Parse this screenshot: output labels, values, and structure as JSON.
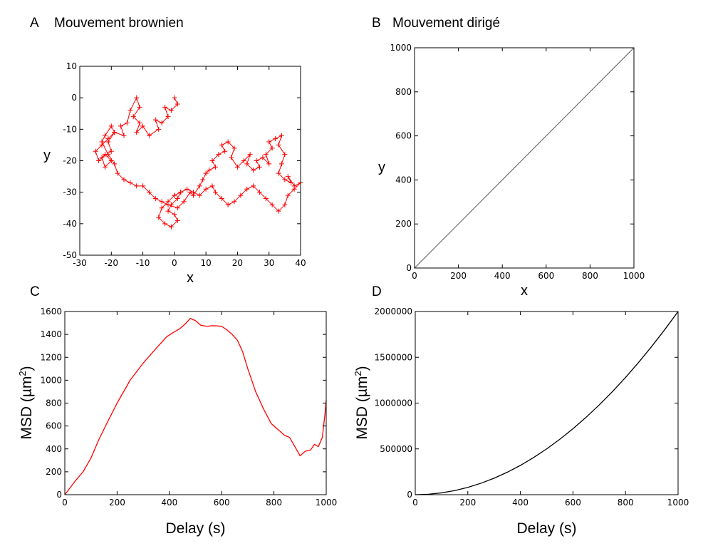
{
  "panels": {
    "A": {
      "letter": "A",
      "title": "Mouvement brownien"
    },
    "B": {
      "letter": "B",
      "title": "Mouvement dirigé"
    },
    "C": {
      "letter": "C",
      "title": ""
    },
    "D": {
      "letter": "D",
      "title": ""
    }
  },
  "colors": {
    "brownian": "#ff0000",
    "directed": "#555555",
    "msd_c": "#ff0000",
    "msd_d": "#000000"
  },
  "chart_data": [
    {
      "id": "A",
      "type": "line",
      "marker": "+",
      "title": "Mouvement brownien",
      "xlabel": "x",
      "ylabel": "y",
      "xlim": [
        -30,
        40
      ],
      "ylim": [
        -50,
        10
      ],
      "xticks": [
        -30,
        -20,
        -10,
        0,
        10,
        20,
        30,
        40
      ],
      "yticks": [
        -50,
        -40,
        -30,
        -20,
        -10,
        0,
        10
      ],
      "grid": false,
      "series": [
        {
          "x": [
            0,
            1,
            -1,
            -3,
            -2,
            -4,
            -6,
            -5,
            -8,
            -10,
            -12,
            -11,
            -13,
            -11,
            -12,
            -14,
            -15,
            -17,
            -16,
            -19,
            -21,
            -20,
            -23,
            -22,
            -20,
            -22,
            -24,
            -25,
            -23,
            -21,
            -19,
            -20,
            -22,
            -23,
            -21,
            -19,
            -18,
            -16,
            -14,
            -12,
            -10,
            -8,
            -6,
            -4,
            -2,
            1,
            3,
            5,
            6,
            8,
            9,
            10,
            11,
            13,
            12,
            14,
            16,
            15,
            17,
            19,
            18,
            20,
            22,
            24,
            23,
            25,
            27,
            26,
            28,
            30,
            29,
            31,
            30,
            32,
            34,
            33,
            35,
            34,
            33,
            35,
            37,
            36,
            38,
            40,
            38,
            36,
            35,
            33,
            31,
            29,
            27,
            25,
            23,
            21,
            19,
            17,
            15,
            13,
            12,
            10,
            8,
            6,
            4,
            2,
            0,
            -2,
            -4,
            -5,
            -3,
            -1,
            1,
            0,
            -2,
            -1,
            1,
            2,
            0
          ],
          "y": [
            0,
            -2,
            -4,
            -3,
            -6,
            -8,
            -7,
            -10,
            -12,
            -9,
            -11,
            -8,
            -6,
            -3,
            0,
            -4,
            -8,
            -9,
            -12,
            -11,
            -14,
            -17,
            -19,
            -22,
            -20,
            -18,
            -20,
            -17,
            -15,
            -13,
            -11,
            -9,
            -12,
            -14,
            -18,
            -21,
            -24,
            -26,
            -27,
            -28,
            -28,
            -30,
            -32,
            -33,
            -34,
            -35,
            -33,
            -30,
            -31,
            -28,
            -26,
            -24,
            -23,
            -22,
            -20,
            -18,
            -17,
            -15,
            -14,
            -16,
            -19,
            -22,
            -20,
            -18,
            -21,
            -23,
            -22,
            -20,
            -19,
            -21,
            -18,
            -16,
            -14,
            -13,
            -12,
            -15,
            -18,
            -21,
            -24,
            -26,
            -27,
            -25,
            -28,
            -27,
            -29,
            -31,
            -34,
            -36,
            -34,
            -32,
            -30,
            -28,
            -29,
            -31,
            -33,
            -34,
            -32,
            -30,
            -28,
            -29,
            -31,
            -30,
            -29,
            -30,
            -31,
            -33,
            -35,
            -38,
            -40,
            -41,
            -39,
            -37,
            -36,
            -34,
            -32,
            -30,
            -31
          ]
        }
      ]
    },
    {
      "id": "B",
      "type": "line",
      "title": "Mouvement dirigé",
      "xlabel": "x",
      "ylabel": "y",
      "xlim": [
        0,
        1000
      ],
      "ylim": [
        0,
        1000
      ],
      "xticks": [
        0,
        200,
        400,
        600,
        800,
        1000
      ],
      "yticks": [
        0,
        200,
        400,
        600,
        800,
        1000
      ],
      "grid": false,
      "series": [
        {
          "x": [
            0,
            1000
          ],
          "y": [
            0,
            1000
          ]
        }
      ]
    },
    {
      "id": "C",
      "type": "line",
      "title": "",
      "xlabel": "Delay (s)",
      "ylabel_prefix": "MSD (µm",
      "ylabel_sup": "2",
      "ylabel_suffix": ")",
      "xlim": [
        0,
        1000
      ],
      "ylim": [
        0,
        1600
      ],
      "xticks": [
        0,
        200,
        400,
        600,
        800,
        1000
      ],
      "yticks": [
        0,
        200,
        400,
        600,
        800,
        1000,
        1200,
        1400,
        1600
      ],
      "grid": false,
      "series": [
        {
          "x": [
            0,
            20,
            40,
            70,
            100,
            130,
            160,
            200,
            250,
            300,
            350,
            390,
            410,
            440,
            460,
            480,
            500,
            520,
            545,
            560,
            580,
            600,
            620,
            640,
            660,
            680,
            700,
            730,
            760,
            790,
            820,
            840,
            860,
            880,
            900,
            920,
            940,
            955,
            970,
            985,
            995,
            1000
          ],
          "y": [
            0,
            60,
            120,
            200,
            320,
            480,
            620,
            800,
            1000,
            1150,
            1280,
            1380,
            1410,
            1450,
            1490,
            1540,
            1520,
            1480,
            1470,
            1475,
            1475,
            1470,
            1440,
            1400,
            1350,
            1250,
            1100,
            900,
            750,
            620,
            560,
            520,
            500,
            420,
            340,
            380,
            390,
            440,
            420,
            500,
            700,
            830
          ]
        }
      ]
    },
    {
      "id": "D",
      "type": "line",
      "title": "",
      "xlabel": "Delay (s)",
      "ylabel_prefix": "MSD (µm",
      "ylabel_sup": "2",
      "ylabel_suffix": ")",
      "xlim": [
        0,
        1000
      ],
      "ylim": [
        0,
        2000000
      ],
      "xticks": [
        0,
        200,
        400,
        600,
        800,
        1000
      ],
      "yticks": [
        0,
        500000,
        1000000,
        1500000,
        2000000
      ],
      "grid": false,
      "formula": "y = 2*x^2",
      "series": [
        {
          "x": [
            0,
            50,
            100,
            150,
            200,
            250,
            300,
            350,
            400,
            450,
            500,
            550,
            600,
            650,
            700,
            750,
            800,
            850,
            900,
            950,
            1000
          ],
          "y": [
            0,
            5000,
            20000,
            45000,
            80000,
            125000,
            180000,
            245000,
            320000,
            405000,
            500000,
            605000,
            720000,
            845000,
            980000,
            1125000,
            1280000,
            1445000,
            1620000,
            1805000,
            2000000
          ]
        }
      ]
    }
  ]
}
